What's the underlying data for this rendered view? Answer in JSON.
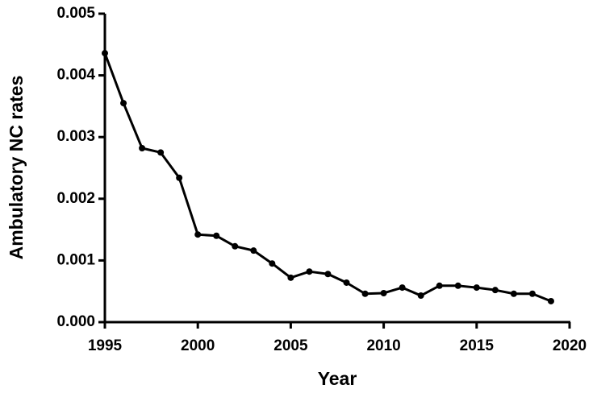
{
  "chart_data": {
    "type": "line",
    "x_label": "Year",
    "y_label": "Ambulatory NC rates",
    "x": [
      1995,
      1996,
      1997,
      1998,
      1999,
      2000,
      2001,
      2002,
      2003,
      2004,
      2005,
      2006,
      2007,
      2008,
      2009,
      2010,
      2011,
      2012,
      2013,
      2014,
      2015,
      2016,
      2017,
      2018,
      2019
    ],
    "series": [
      {
        "color": "#000000",
        "values": [
          0.00436,
          0.00355,
          0.00282,
          0.00275,
          0.00234,
          0.00142,
          0.0014,
          0.00123,
          0.00116,
          0.00095,
          0.00072,
          0.00082,
          0.00078,
          0.00064,
          0.00046,
          0.00047,
          0.00056,
          0.00043,
          0.00059,
          0.00059,
          0.00056,
          0.00052,
          0.00046,
          0.00046,
          0.00034
        ]
      }
    ],
    "xlim": [
      1995,
      2020
    ],
    "xticks": [
      1995,
      2000,
      2005,
      2010,
      2015,
      2020
    ],
    "ylim": [
      0,
      0.005
    ],
    "yticks": [
      {
        "value": 0,
        "label": "0.000"
      },
      {
        "value": 0.001,
        "label": "0.001"
      },
      {
        "value": 0.002,
        "label": "0.002"
      },
      {
        "value": 0.003,
        "label": "0.003"
      },
      {
        "value": 0.004,
        "label": "0.004"
      },
      {
        "value": 0.005,
        "label": "0.005"
      }
    ],
    "grid": false
  }
}
